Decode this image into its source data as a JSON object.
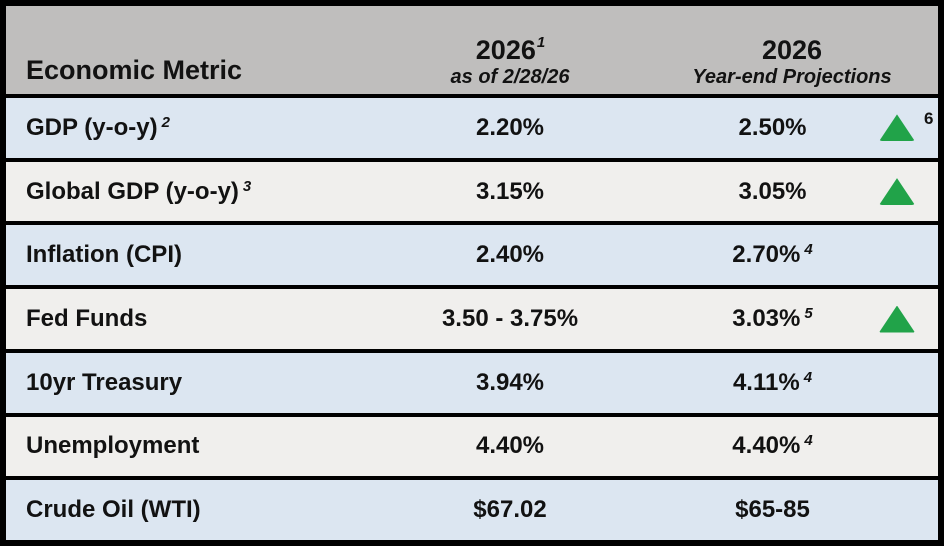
{
  "table": {
    "header": {
      "metric_label": "Economic Metric",
      "current_column": {
        "title": "2026",
        "title_sup": "1",
        "subtitle": "as of 2/28/26"
      },
      "projection_column": {
        "title": "2026",
        "subtitle": "Year-end Projections"
      }
    },
    "rows": [
      {
        "metric": "GDP (y-o-y)",
        "metric_sup": "2",
        "current": "2.20%",
        "projection": "2.50%",
        "projection_sup": "",
        "indicator": "up",
        "indicator_sup": "6"
      },
      {
        "metric": "Global GDP (y-o-y)",
        "metric_sup": "3",
        "current": "3.15%",
        "projection": "3.05%",
        "projection_sup": "",
        "indicator": "up",
        "indicator_sup": ""
      },
      {
        "metric": "Inflation (CPI)",
        "metric_sup": "",
        "current": "2.40%",
        "projection": "2.70%",
        "projection_sup": "4",
        "indicator": "none",
        "indicator_sup": ""
      },
      {
        "metric": "Fed Funds",
        "metric_sup": "",
        "current": "3.50 - 3.75%",
        "projection": "3.03%",
        "projection_sup": "5",
        "indicator": "up",
        "indicator_sup": ""
      },
      {
        "metric": "10yr Treasury",
        "metric_sup": "",
        "current": "3.94%",
        "projection": "4.11%",
        "projection_sup": "4",
        "indicator": "none",
        "indicator_sup": ""
      },
      {
        "metric": "Unemployment",
        "metric_sup": "",
        "current": "4.40%",
        "projection": "4.40%",
        "projection_sup": "4",
        "indicator": "none",
        "indicator_sup": ""
      },
      {
        "metric": "Crude Oil (WTI)",
        "metric_sup": "",
        "current": "$67.02",
        "projection": "$65-85",
        "projection_sup": "",
        "indicator": "none",
        "indicator_sup": ""
      }
    ],
    "colors": {
      "header_bg": "#bfbebd",
      "row_blue": "#dce6f1",
      "row_gray": "#f0efed",
      "border": "#000000",
      "up_indicator": "#21a349",
      "text": "#121212"
    }
  }
}
